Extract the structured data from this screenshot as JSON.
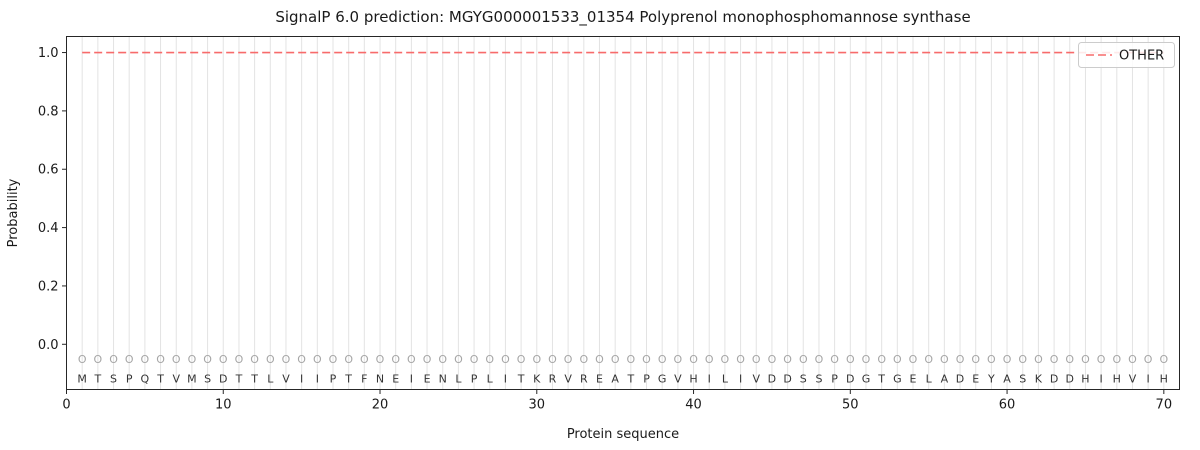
{
  "chart_data": {
    "type": "line",
    "title": "SignalP 6.0 prediction: MGYG000001533_01354 Polyprenol monophosphomannose synthase",
    "xlabel": "Protein sequence",
    "ylabel": "Probability",
    "xlim": [
      0,
      71
    ],
    "ylim": [
      -0.155,
      1.055
    ],
    "x_ticks": [
      0,
      10,
      20,
      30,
      40,
      50,
      60,
      70
    ],
    "y_ticks": [
      0.0,
      0.2,
      0.4,
      0.6,
      0.8,
      1.0
    ],
    "y_tick_labels": [
      "0.0",
      "0.2",
      "0.4",
      "0.6",
      "0.8",
      "1.0"
    ],
    "grid": {
      "vertical_per_residue": true,
      "horizontal": false,
      "color": "#e3e3e3"
    },
    "legend": {
      "position": "upper-right",
      "entries": [
        {
          "label": "OTHER",
          "color": "#f76b6b",
          "linestyle": "dashed"
        }
      ]
    },
    "series": [
      {
        "name": "OTHER",
        "color": "#f76b6b",
        "linestyle": "dashed",
        "x_start": 1,
        "x_end": 70,
        "y_value": 1.0
      }
    ],
    "sequence": "MTSPQTVMSDTTLVIIPTFNEIENLPLITKRVREATPGVHILIVDDSSPDGTGELADEYASKDDHIHVIH",
    "per_residue_label": "O",
    "colors": {
      "sequence_letters": "#333333",
      "residue_markers": "#a6a6a6",
      "spine": "#262626"
    }
  }
}
